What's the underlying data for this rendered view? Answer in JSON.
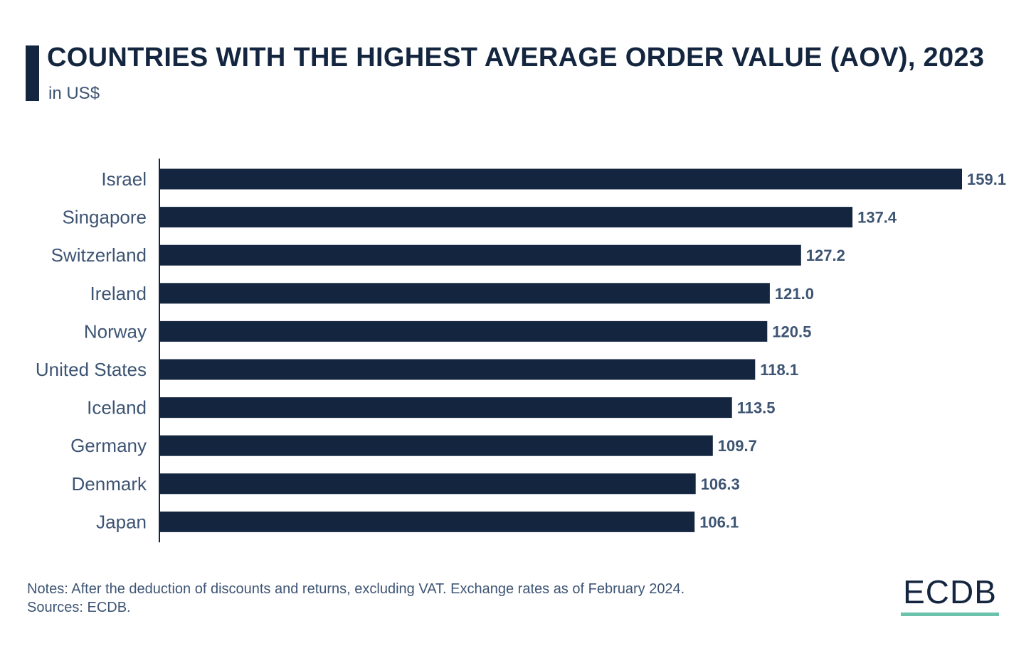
{
  "header": {
    "title": "COUNTRIES WITH THE HIGHEST AVERAGE ORDER VALUE (AOV), 2023",
    "subtitle": "in US$"
  },
  "footer": {
    "notes": "Notes: After the deduction of discounts and returns, excluding VAT. Exchange rates as of February 2024.",
    "sources": "Sources: ECDB."
  },
  "logo": {
    "text": "ECDB",
    "accent_color": "#6cc3ad"
  },
  "colors": {
    "bar": "#14263f",
    "text": "#3d5473"
  },
  "chart_data": {
    "type": "bar",
    "orientation": "horizontal",
    "title": "COUNTRIES WITH THE HIGHEST AVERAGE ORDER VALUE (AOV), 2023",
    "subtitle": "in US$",
    "categories": [
      "Israel",
      "Singapore",
      "Switzerland",
      "Ireland",
      "Norway",
      "United States",
      "Iceland",
      "Germany",
      "Denmark",
      "Japan"
    ],
    "values": [
      159.1,
      137.4,
      127.2,
      121.0,
      120.5,
      118.1,
      113.5,
      109.7,
      106.3,
      106.1
    ],
    "value_labels": [
      "159.1",
      "137.4",
      "127.2",
      "121.0",
      "120.5",
      "118.1",
      "113.5",
      "109.7",
      "106.3",
      "106.1"
    ],
    "xlim": [
      0,
      159.1
    ],
    "grid": false,
    "legend": "none"
  }
}
